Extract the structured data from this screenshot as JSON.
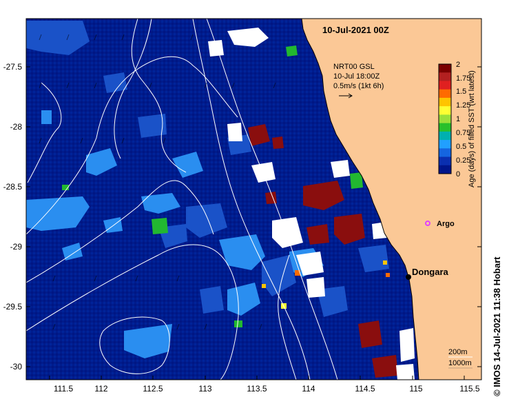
{
  "map": {
    "date_title": "10-Jul-2021 00Z",
    "x_ticks": [
      "111.5",
      "112",
      "112.5",
      "113",
      "113.5",
      "114",
      "114.5",
      "115",
      "115.5"
    ],
    "y_ticks": [
      "-27.5",
      "-28",
      "-28.5",
      "-29",
      "-29.5",
      "-30"
    ],
    "current_box": {
      "line1": "NRT00 GSL",
      "line2": "10-Jul 18:00Z",
      "line3": "0.5m/s (1kt 6h)"
    },
    "colorbar": {
      "label": "Age (days) of filled SST (wrt latest)",
      "ticks": [
        "2",
        "1.75",
        "1.5",
        "1.25",
        "1",
        "0.75",
        "0.5",
        "0.25",
        "0"
      ],
      "colors": [
        "#7a0000",
        "#b32020",
        "#e02020",
        "#ff6a00",
        "#ffc400",
        "#ffff33",
        "#9be03a",
        "#27c02b",
        "#00b0b0",
        "#21a0ff",
        "#1565e0",
        "#0a2fb0",
        "#00158a"
      ]
    },
    "places": [
      {
        "name": "Argo",
        "lon": 115.13,
        "lat": -28.84
      },
      {
        "name": "Dongara",
        "lon": 114.93,
        "lat": -29.25
      }
    ],
    "depth_labels": {
      "a": "200m",
      "b": "1000m"
    },
    "credit": "© IMOS 14-Jul-2021 11:38 Hobart",
    "colors": {
      "land": "#fbc896",
      "ocean_base": "#001c8c",
      "patch_light": "#2a8ef0",
      "patch_mid": "#1a52c8",
      "patch_green": "#22b830",
      "patch_red": "#8a0e0e",
      "cloud": "#ffffff",
      "contour": "#ffffff",
      "argo": "#e040ff"
    }
  }
}
